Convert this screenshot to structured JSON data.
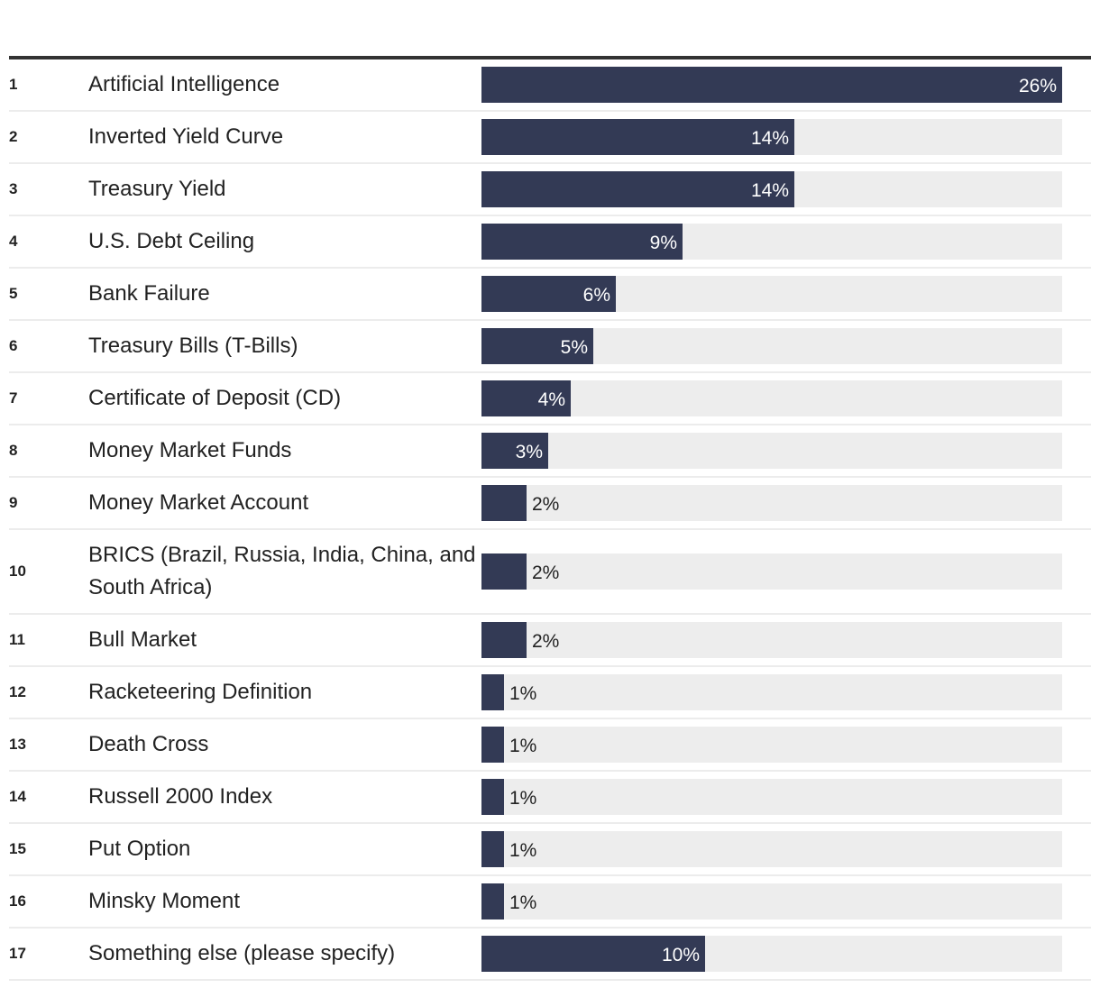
{
  "chart_data": {
    "type": "bar",
    "orientation": "horizontal",
    "xlim": [
      0,
      26
    ],
    "bar_color": "#333a55",
    "track_color": "#ededed",
    "value_suffix": "%",
    "rows": [
      {
        "rank": "1",
        "label": "Artificial Intelligence",
        "value": 26
      },
      {
        "rank": "2",
        "label": "Inverted Yield Curve",
        "value": 14
      },
      {
        "rank": "3",
        "label": "Treasury Yield",
        "value": 14
      },
      {
        "rank": "4",
        "label": "U.S. Debt Ceiling",
        "value": 9
      },
      {
        "rank": "5",
        "label": "Bank Failure",
        "value": 6
      },
      {
        "rank": "6",
        "label": "Treasury Bills (T-Bills)",
        "value": 5
      },
      {
        "rank": "7",
        "label": "Certificate of Deposit (CD)",
        "value": 4
      },
      {
        "rank": "8",
        "label": "Money Market Funds",
        "value": 3
      },
      {
        "rank": "9",
        "label": "Money Market Account",
        "value": 2
      },
      {
        "rank": "10",
        "label": "BRICS (Brazil, Russia, India, China, and South Africa)",
        "value": 2
      },
      {
        "rank": "11",
        "label": "Bull Market",
        "value": 2
      },
      {
        "rank": "12",
        "label": "Racketeering Definition",
        "value": 1
      },
      {
        "rank": "13",
        "label": "Death Cross",
        "value": 1
      },
      {
        "rank": "14",
        "label": "Russell 2000 Index",
        "value": 1
      },
      {
        "rank": "15",
        "label": "Put Option",
        "value": 1
      },
      {
        "rank": "16",
        "label": "Minsky Moment",
        "value": 1
      },
      {
        "rank": "17",
        "label": "Something else (please specify)",
        "value": 10
      }
    ]
  }
}
